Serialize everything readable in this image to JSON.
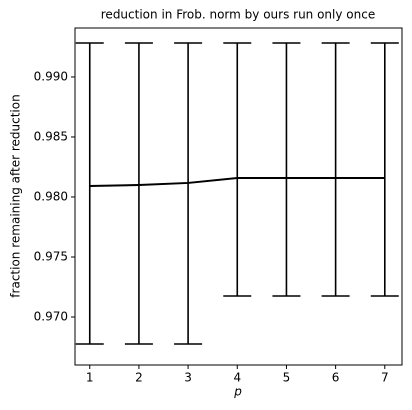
{
  "chart_data": {
    "type": "line",
    "title": "reduction in Frob. norm by ours run only once",
    "x_label": "p",
    "y_label": "fraction remaining after reduction",
    "x": [
      1,
      2,
      3,
      4,
      5,
      6,
      7
    ],
    "values": [
      0.98092,
      0.981,
      0.98117,
      0.98158,
      0.98158,
      0.98158,
      0.98158
    ],
    "lower": [
      0.96775,
      0.96775,
      0.96775,
      0.97175,
      0.97175,
      0.97175,
      0.97175
    ],
    "upper": [
      0.99283,
      0.99283,
      0.99283,
      0.99283,
      0.99283,
      0.99283,
      0.99283
    ],
    "color": "#000000",
    "xlim": [
      0.7,
      7.35
    ],
    "xticks": [
      1,
      2,
      3,
      4,
      5,
      6,
      7
    ],
    "ylim": [
      0.966,
      0.99408
    ],
    "yticks": [
      {
        "value": 0.97,
        "label": "0.970"
      },
      {
        "value": 0.975,
        "label": "0.975"
      },
      {
        "value": 0.98,
        "label": "0.980"
      },
      {
        "value": 0.985,
        "label": "0.985"
      },
      {
        "value": 0.99,
        "label": "0.990"
      }
    ]
  }
}
